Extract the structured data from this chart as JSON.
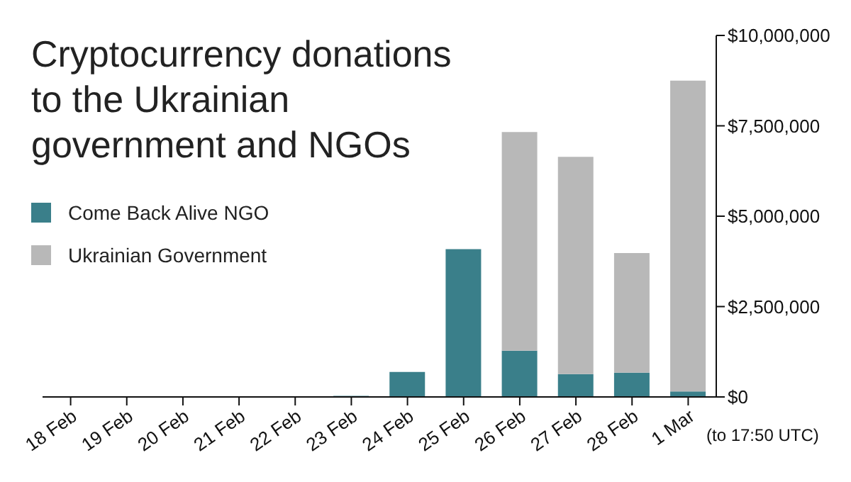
{
  "chart_data": {
    "type": "bar",
    "title": "Cryptocurrency donations to the Ukrainian government and NGOs",
    "categories": [
      "18 Feb",
      "19 Feb",
      "20 Feb",
      "21 Feb",
      "22 Feb",
      "23 Feb",
      "24 Feb",
      "25 Feb",
      "26 Feb",
      "27 Feb",
      "28 Feb",
      "1 Mar"
    ],
    "stacked": true,
    "series": [
      {
        "name": "Come Back Alive NGO",
        "color": "#3a7f8a",
        "values": [
          0,
          0,
          0,
          0,
          0,
          30000,
          690000,
          4090000,
          1280000,
          630000,
          670000,
          150000
        ]
      },
      {
        "name": "Ukrainian Government",
        "color": "#b8b8b8",
        "values": [
          0,
          0,
          0,
          0,
          0,
          0,
          0,
          0,
          6050000,
          6010000,
          3310000,
          8600000
        ]
      }
    ],
    "ylim": [
      0,
      10000000
    ],
    "yticks": [
      {
        "value": 0,
        "label": "$0"
      },
      {
        "value": 2500000,
        "label": "$2,500,000"
      },
      {
        "value": 5000000,
        "label": "$5,000,000"
      },
      {
        "value": 7500000,
        "label": "$7,500,000"
      },
      {
        "value": 10000000,
        "label": "$10,000,000"
      }
    ],
    "legend": "left",
    "annotations": [
      "(to 17:50 UTC)"
    ]
  }
}
